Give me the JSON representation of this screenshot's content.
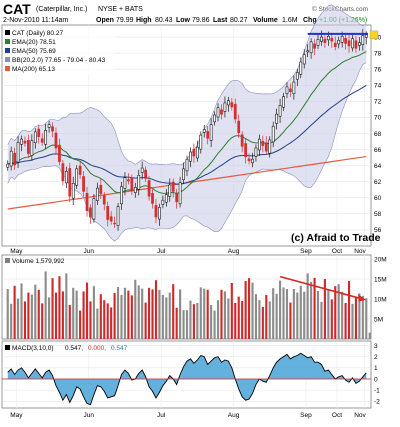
{
  "header": {
    "symbol": "CAT",
    "company": "(Caterpillar, Inc.)",
    "exchange": "NYSE + BATS",
    "date": "2-Nov-2010 11:14am",
    "open_label": "Open",
    "open": "79.99",
    "high_label": "High",
    "high": "80.43",
    "low_label": "Low",
    "low": "79.86",
    "last_label": "Last",
    "last": "80.27",
    "volume_label": "Volume",
    "volume": "1.6M",
    "chg_label": "Chg",
    "chg": "+1.00 (+1.26%)",
    "source": "© StockCharts.com"
  },
  "legend": {
    "price": "CAT (Daily) 80.27",
    "ema20": "EMA(20) 78.51",
    "ema50": "EMA(50) 75.69",
    "bb": "BB(20,2.0) 77.65 - 79.04 - 80.43",
    "ma200": "MA(200) 65.13",
    "volume": "Volume 1,579,992",
    "macd_prefix": "MACD(3,10,0)",
    "macd_v1": "0.547,",
    "macd_v2": "0.000,",
    "macd_v3": "0.547"
  },
  "watermark": "(c) Afraid to Trade",
  "colors": {
    "up": "#2e7d32",
    "down": "#d32f2f",
    "ema20": "#2e7d32",
    "ema50": "#1f3f8f",
    "bb": "#8a8fc0",
    "ma200": "#e65a40",
    "blue_level": "#1a35c8",
    "trend_arrow": "#d9281e",
    "macd_fill": "#4aa3d8"
  },
  "chart_data": [
    {
      "type": "candlestick",
      "title": "CAT (Daily)",
      "x_ticks": [
        "May",
        "Jun",
        "Jul",
        "Aug",
        "Sep",
        "Oct",
        "Nov"
      ],
      "y_ticks": [
        56,
        58,
        60,
        62,
        64,
        66,
        68,
        70,
        72,
        74,
        76,
        78,
        80
      ],
      "ylim": [
        54,
        81.5
      ],
      "close": [
        64.2,
        65.8,
        64.1,
        66.9,
        67.3,
        66.8,
        65.5,
        67.1,
        68.2,
        67.6,
        66.9,
        68.4,
        69.1,
        68.3,
        66.2,
        64.5,
        62.1,
        63.3,
        60.2,
        61.8,
        63.6,
        62.9,
        60.8,
        58.4,
        57.6,
        59.9,
        61.2,
        60.5,
        59.2,
        57.3,
        57.1,
        56.8,
        58.9,
        61.4,
        62.5,
        62.1,
        60.9,
        61.3,
        62.8,
        63.7,
        62.4,
        60.2,
        59.3,
        57.6,
        58.8,
        59.7,
        60.4,
        61.6,
        60.8,
        59.5,
        61.9,
        63.6,
        64.8,
        65.7,
        65.2,
        66.3,
        67.8,
        68.5,
        67.4,
        69.1,
        70.3,
        71.2,
        70.4,
        71.8,
        72.1,
        71.3,
        69.8,
        68.1,
        66.4,
        65.1,
        64.6,
        64.8,
        66.2,
        67.3,
        66.5,
        65.8,
        67.2,
        68.9,
        70.4,
        71.5,
        72.6,
        73.8,
        73.2,
        74.4,
        75.6,
        76.9,
        77.8,
        78.3,
        79.4,
        78.6,
        79.7,
        80.0,
        79.3,
        80.1,
        79.5,
        78.8,
        79.6,
        80.1,
        79.2,
        78.9,
        79.8,
        78.6,
        79.3,
        80.2,
        80.27
      ],
      "ema20_end": 78.51,
      "ema50_end": 75.69,
      "ma200_end": 65.13,
      "bb_end": [
        77.65,
        79.04,
        80.43
      ],
      "annotation_level": 80.4
    },
    {
      "type": "bar",
      "title": "Volume",
      "y_ticks": [
        "5M",
        "10M",
        "15M",
        "20M"
      ],
      "ylim": [
        0,
        21000000
      ],
      "values_millions": [
        12.5,
        8.8,
        13.3,
        10.1,
        13.9,
        9.4,
        11.6,
        11.1,
        13.6,
        12.3,
        8.9,
        16.9,
        10.4,
        15.2,
        11.6,
        15.7,
        11.9,
        16.4,
        8.5,
        12.8,
        12.1,
        7.1,
        11.9,
        14.1,
        9.4,
        13.2,
        7.6,
        11.2,
        9.7,
        8.9,
        7.9,
        11.5,
        13.0,
        11.0,
        12.8,
        12.1,
        10.9,
        14.8,
        13.4,
        12.6,
        9.1,
        12.8,
        12.4,
        14.7,
        12.3,
        11.0,
        10.4,
        11.6,
        13.7,
        7.8,
        12.4,
        7.2,
        7.2,
        9.6,
        8.7,
        9.0,
        12.9,
        12.6,
        12.3,
        8.5,
        7.1,
        9.7,
        12.3,
        11.9,
        10.1,
        14.0,
        9.0,
        10.6,
        9.5,
        14.5,
        15.2,
        14.1,
        11.2,
        9.7,
        8.0,
        11.0,
        9.4,
        12.7,
        11.3,
        14.6,
        12.9,
        12.5,
        9.1,
        12.5,
        11.6,
        13.3,
        11.8,
        16.4,
        14.3,
        15.3,
        12.0,
        9.3,
        15.0,
        12.3,
        9.9,
        13.2,
        13.7,
        11.8,
        9.0,
        14.5,
        8.8,
        10.5,
        11.4,
        10.8,
        10.2,
        1.6
      ]
    },
    {
      "type": "area",
      "title": "MACD(3,10,0)",
      "y_ticks": [
        -2,
        -1,
        0,
        1,
        2,
        3
      ],
      "ylim": [
        -2.6,
        3.4
      ],
      "values": [
        0.6,
        0.9,
        0.4,
        0.8,
        1.0,
        0.6,
        0.1,
        0.5,
        0.9,
        0.5,
        0.1,
        0.6,
        0.8,
        0.3,
        -0.6,
        -1.2,
        -1.9,
        -1.4,
        -2.1,
        -1.5,
        -0.7,
        -0.9,
        -1.6,
        -2.2,
        -2.3,
        -1.4,
        -0.6,
        -0.7,
        -1.1,
        -1.7,
        -1.6,
        -1.5,
        -0.6,
        0.4,
        0.8,
        0.5,
        -0.1,
        0.0,
        0.5,
        0.8,
        0.2,
        -0.7,
        -1.1,
        -1.7,
        -1.2,
        -0.6,
        -0.2,
        0.3,
        0.0,
        -0.5,
        0.4,
        1.1,
        1.6,
        1.8,
        1.4,
        1.7,
        2.1,
        2.0,
        1.3,
        1.6,
        1.9,
        2.0,
        1.5,
        1.7,
        1.6,
        1.0,
        0.0,
        -0.9,
        -1.6,
        -1.9,
        -1.8,
        -1.3,
        -0.5,
        0.0,
        -0.2,
        -0.3,
        0.3,
        1.0,
        1.5,
        1.8,
        2.0,
        2.2,
        1.8,
        2.0,
        2.1,
        2.3,
        2.1,
        1.9,
        2.0,
        1.5,
        1.5,
        1.3,
        0.7,
        0.8,
        0.4,
        0.0,
        0.2,
        0.3,
        -0.1,
        -0.3,
        0.1,
        -0.4,
        -0.2,
        0.2,
        0.547
      ]
    }
  ]
}
